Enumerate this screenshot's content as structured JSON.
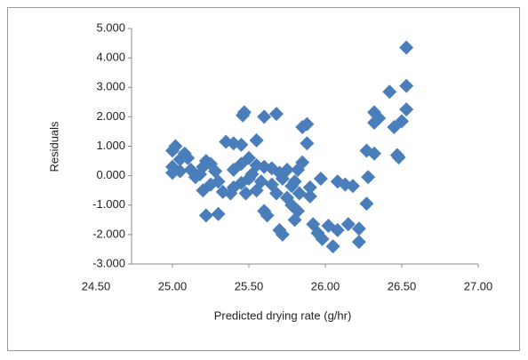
{
  "chart_data": {
    "type": "scatter",
    "x_label": "Predicted drying rate (g/hr)",
    "y_label": "Residuals",
    "color": "#4a7ebb",
    "xlim": [
      24.5,
      27.0
    ],
    "ylim": [
      -3,
      5
    ],
    "xticks": [
      {
        "value": 24.5,
        "label": "24.50"
      },
      {
        "value": 25,
        "label": "25.00"
      },
      {
        "value": 25.5,
        "label": "25.50"
      },
      {
        "value": 26,
        "label": "26.00"
      },
      {
        "value": 26.5,
        "label": "26.50"
      },
      {
        "value": 27,
        "label": "27.00"
      }
    ],
    "yticks": [
      {
        "value": -3,
        "label": "-3.000"
      },
      {
        "value": -2,
        "label": "-2.000"
      },
      {
        "value": -1,
        "label": "-1.000"
      },
      {
        "value": 0,
        "label": "0.000"
      },
      {
        "value": 1,
        "label": "1.000"
      },
      {
        "value": 2,
        "label": "2.000"
      },
      {
        "value": 3,
        "label": "3.000"
      },
      {
        "value": 4,
        "label": "4.000"
      },
      {
        "value": 5,
        "label": "5.000"
      }
    ],
    "x": [
      26.53,
      26.53,
      26.53,
      26.42,
      26.45,
      26.5,
      26.47,
      26.48,
      26.32,
      26.35,
      26.32,
      26.27,
      26.32,
      26.28,
      26.27,
      26.22,
      26.22,
      26.18,
      26.13,
      26.08,
      26.15,
      26.05,
      26.08,
      26.02,
      25.98,
      25.95,
      25.97,
      25.92,
      25.88,
      25.85,
      25.88,
      25.85,
      25.82,
      25.8,
      25.83,
      25.78,
      25.8,
      25.82,
      25.75,
      25.68,
      25.6,
      25.7,
      25.72,
      25.62,
      25.6,
      25.55,
      25.47,
      25.46,
      25.45,
      25.4,
      25.35,
      25.5,
      25.55,
      25.6,
      25.65,
      25.7,
      25.58,
      25.65,
      25.68,
      25.5,
      25.45,
      25.4,
      25.38,
      25.33,
      25.3,
      25.28,
      25.25,
      25.22,
      25.2,
      25.18,
      25.15,
      25.12,
      25.1,
      25.08,
      25.05,
      25.02,
      25.0,
      25.0,
      25.0,
      25.05,
      25.2,
      25.22,
      25.3,
      25.25,
      25.4,
      25.45,
      25.52,
      25.55,
      25.48,
      25.75,
      25.9,
      25.9,
      25.78,
      25.72
    ],
    "values": [
      4.35,
      3.05,
      2.25,
      2.85,
      1.65,
      1.85,
      0.7,
      0.62,
      2.15,
      1.95,
      1.8,
      0.85,
      0.75,
      -0.05,
      -0.95,
      -1.8,
      -2.25,
      -0.35,
      -0.3,
      -0.2,
      -1.65,
      -2.4,
      -1.85,
      -1.7,
      -2.15,
      -1.95,
      -0.1,
      -1.65,
      1.75,
      1.65,
      1.1,
      0.45,
      0.2,
      -0.2,
      -0.6,
      -1.0,
      -1.5,
      -1.2,
      -0.75,
      2.1,
      2.0,
      -1.85,
      -2.0,
      -1.35,
      -1.2,
      1.2,
      2.15,
      2.05,
      1.05,
      1.1,
      1.15,
      0.6,
      0.35,
      0.3,
      0.25,
      0.1,
      -0.2,
      -0.3,
      -0.6,
      -0.1,
      -0.25,
      -0.4,
      -0.6,
      -0.55,
      -0.2,
      0.15,
      0.4,
      0.5,
      0.3,
      0.05,
      -0.05,
      0.2,
      0.6,
      0.75,
      0.55,
      1.0,
      0.85,
      0.3,
      0.1,
      0.15,
      -0.5,
      -1.35,
      -1.3,
      -0.3,
      0.2,
      0.4,
      0.05,
      -0.5,
      -0.6,
      0.2,
      -0.4,
      -0.7,
      -0.35,
      -0.1
    ]
  }
}
